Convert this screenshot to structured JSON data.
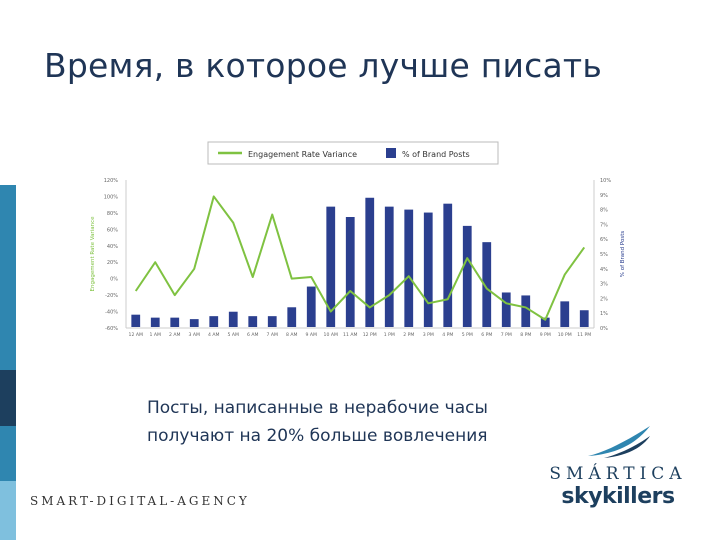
{
  "slide": {
    "title": "Время, в которое лучше писать",
    "caption_line1": "Посты, написанные в нерабочие часы",
    "caption_line2": "получают на 20% больше вовлечения",
    "footer_agency": "SMART-DIGITAL-AGENCY",
    "logo_brand_1": "SMÁRTICA",
    "logo_brand_2": "skykillers"
  },
  "colors": {
    "title": "#1f3556",
    "bars": "#2b3f8f",
    "line": "#7fc241",
    "axis_text": "#666666",
    "left_accent_1": "#2f86b0",
    "left_accent_2": "#1d3f5e",
    "left_accent_3": "#7fc0de"
  },
  "chart_data": {
    "type": "bar",
    "categories": [
      "12 AM",
      "1 AM",
      "2 AM",
      "3 AM",
      "4 AM",
      "5 AM",
      "6 AM",
      "7 AM",
      "8 AM",
      "9 AM",
      "10 AM",
      "11 AM",
      "12 PM",
      "1 PM",
      "2 PM",
      "3 PM",
      "4 PM",
      "5 PM",
      "6 PM",
      "7 PM",
      "8 PM",
      "9 PM",
      "10 PM",
      "11 PM"
    ],
    "legend": [
      "Engagement Rate Variance",
      "% of Brand Posts"
    ],
    "legend_position": "top",
    "y_left": {
      "label": "Engagement Rate Variance",
      "ticks": [
        "120%",
        "100%",
        "80%",
        "60%",
        "40%",
        "20%",
        "0%",
        "-20%",
        "-40%",
        "-60%"
      ],
      "range": [
        -60,
        120
      ]
    },
    "y_right": {
      "label": "% of Brand Posts",
      "ticks": [
        "10%",
        "9%",
        "8%",
        "7%",
        "6%",
        "5%",
        "4%",
        "3%",
        "2%",
        "1%",
        "0%"
      ],
      "range": [
        0,
        10
      ]
    },
    "series": [
      {
        "name": "% of Brand Posts",
        "type": "bar",
        "axis": "right",
        "values": [
          0.9,
          0.7,
          0.7,
          0.6,
          0.8,
          1.1,
          0.8,
          0.8,
          1.4,
          2.8,
          8.2,
          7.5,
          8.8,
          8.2,
          8.0,
          7.8,
          8.4,
          6.9,
          5.8,
          2.4,
          2.2,
          0.7,
          1.8,
          1.2
        ]
      },
      {
        "name": "Engagement Rate Variance",
        "type": "line",
        "axis": "left",
        "values": [
          -15,
          20,
          -20,
          12,
          100,
          68,
          2,
          78,
          0,
          2,
          -40,
          -15,
          -35,
          -20,
          3,
          -30,
          -25,
          25,
          -12,
          -30,
          -35,
          -50,
          5,
          38
        ]
      }
    ],
    "grid": false
  }
}
